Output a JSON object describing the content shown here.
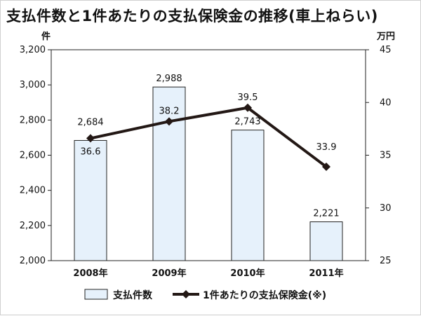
{
  "title": "支払件数と1件あたりの支払保険金の推移(車上ねらい)",
  "units": {
    "left": "件",
    "right": "万円"
  },
  "colors": {
    "bar_fill": "#e6f1fb",
    "bar_stroke": "#222222",
    "line": "#231815",
    "marker": "#231815",
    "background": "#ffffff"
  },
  "chart_data": {
    "type": "bar",
    "categories": [
      "2008年",
      "2009年",
      "2010年",
      "2011年"
    ],
    "series": [
      {
        "name": "支払件数",
        "kind": "bar",
        "axis": "left",
        "values": [
          2684,
          2988,
          2743,
          2221
        ],
        "labels": [
          "2,684",
          "2,988",
          "2,743",
          "2,221"
        ]
      },
      {
        "name": "1件あたりの支払保険金(※)",
        "kind": "line",
        "axis": "right",
        "values": [
          36.6,
          38.2,
          39.5,
          33.9
        ],
        "labels": [
          "36.6",
          "38.2",
          "39.5",
          "33.9"
        ]
      }
    ],
    "y_left": {
      "range": [
        2000,
        3200
      ],
      "ticks": [
        2000,
        2200,
        2400,
        2600,
        2800,
        3000,
        3200
      ],
      "tick_labels": [
        "2,000",
        "2,200",
        "2,400",
        "2,600",
        "2,800",
        "3,000",
        "3,200"
      ],
      "unit": "件"
    },
    "y_right": {
      "range": [
        25,
        45
      ],
      "ticks": [
        25,
        30,
        35,
        40,
        45
      ],
      "tick_labels": [
        "25",
        "30",
        "35",
        "40",
        "45"
      ],
      "unit": "万円"
    },
    "grid": false,
    "legend_position": "bottom-left"
  }
}
